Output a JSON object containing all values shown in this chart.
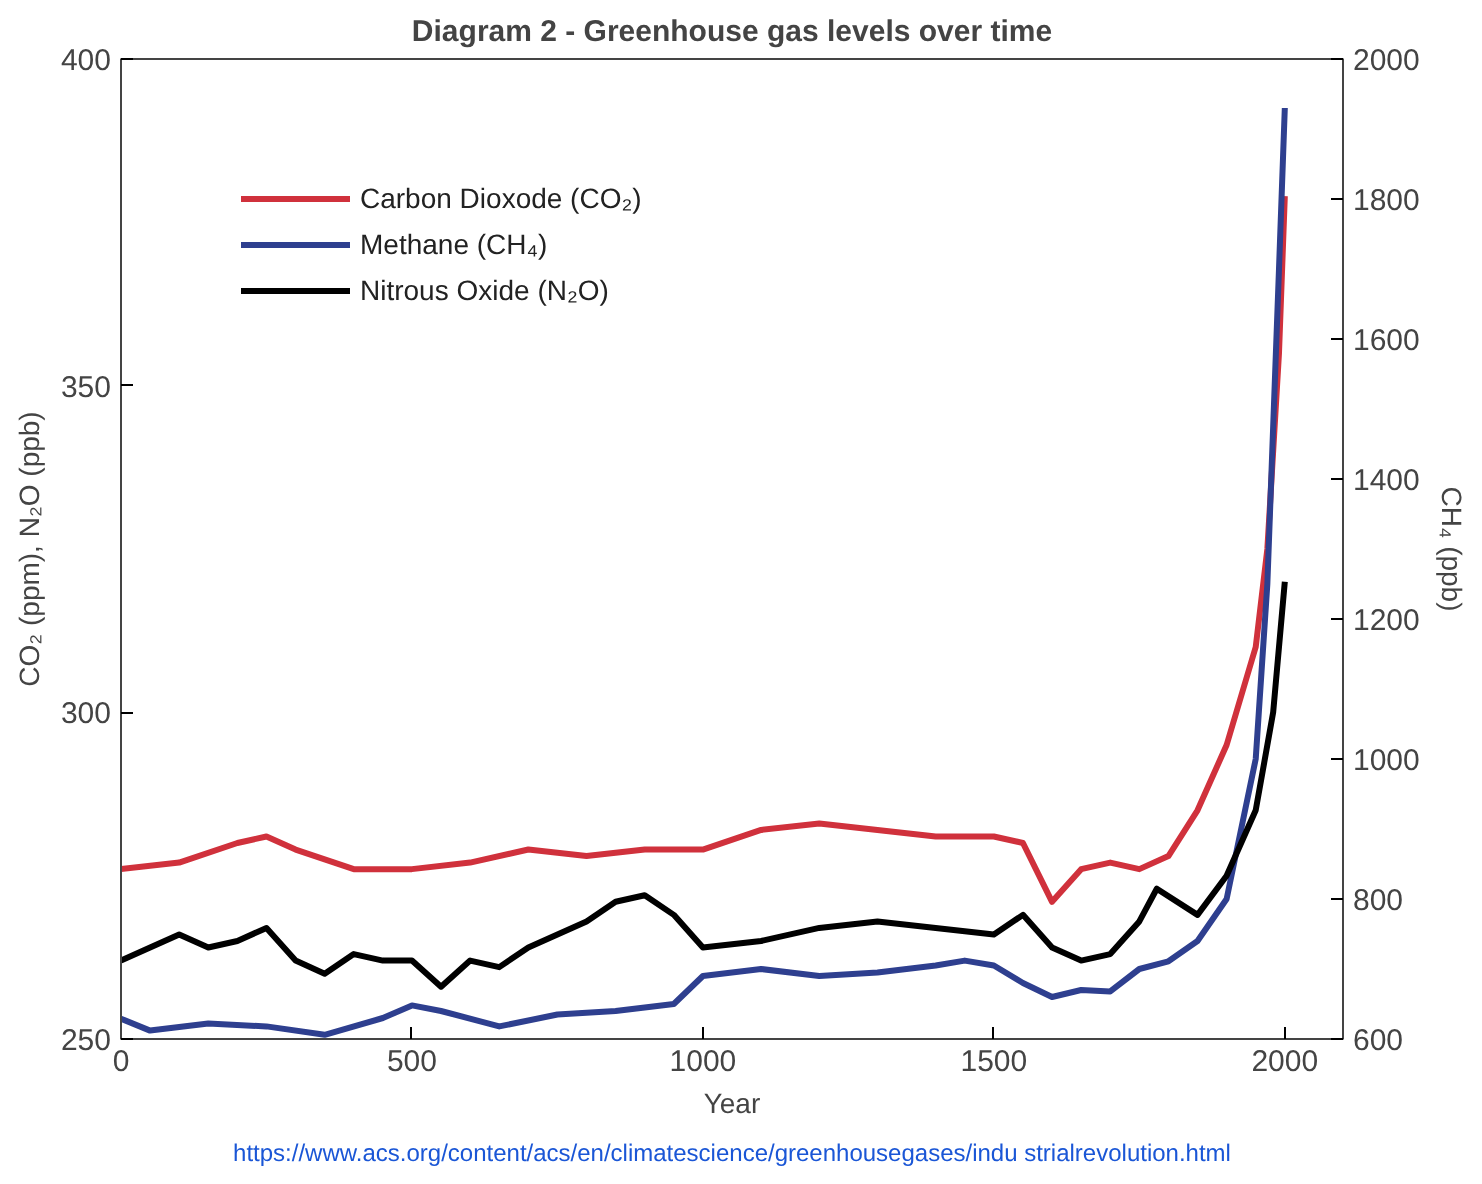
{
  "chart_data": {
    "type": "line",
    "title": "Diagram 2 - Greenhouse gas levels over time",
    "xlabel": "Year",
    "ylabel": "CO₂ (ppm), N₂O (ppb)",
    "y2label": "CH₄ (ppb)",
    "xlim": [
      0,
      2100
    ],
    "xticks": [
      0,
      500,
      1000,
      1500,
      2000
    ],
    "ylim": [
      250,
      400
    ],
    "yticks": [
      250,
      300,
      350,
      400
    ],
    "y2lim": [
      600,
      2000
    ],
    "y2ticks": [
      600,
      800,
      1000,
      1200,
      1400,
      1600,
      1800,
      2000
    ],
    "grid": false,
    "legend": "top left",
    "marker": "none",
    "line_style": "solid",
    "annotations": [
      "https://www.acs.org/content/acs/en/climatescience/greenhousegases/indu strialrevolution.html"
    ],
    "series": [
      {
        "name": "Carbon Dioxode (CO₂)",
        "color": "#d0313c",
        "x": [
          0,
          100,
          200,
          250,
          300,
          400,
          500,
          600,
          700,
          800,
          900,
          1000,
          1100,
          1200,
          1300,
          1400,
          1500,
          1550,
          1600,
          1650,
          1700,
          1750,
          1800,
          1850,
          1900,
          1950,
          1970,
          1990,
          2000
        ],
        "values": [
          276,
          277,
          280,
          281,
          279,
          276,
          276,
          277,
          279,
          278,
          279,
          279,
          282,
          283,
          282,
          281,
          281,
          280,
          271,
          276,
          277,
          276,
          278,
          285,
          295,
          310,
          325,
          355,
          379
        ]
      },
      {
        "name": "Methane (CH₄)",
        "color": "#2e3f8f",
        "axis": "y2",
        "x": [
          0,
          50,
          150,
          250,
          350,
          450,
          500,
          550,
          650,
          750,
          850,
          950,
          1000,
          1100,
          1200,
          1300,
          1400,
          1450,
          1500,
          1550,
          1600,
          1650,
          1700,
          1750,
          1800,
          1850,
          1900,
          1950,
          1970,
          1990,
          2000
        ],
        "values": [
          629,
          612,
          622,
          618,
          606,
          630,
          648,
          640,
          618,
          635,
          640,
          650,
          690,
          700,
          690,
          695,
          705,
          712,
          705,
          680,
          660,
          670,
          668,
          700,
          711,
          740,
          800,
          1000,
          1250,
          1700,
          1930
        ]
      },
      {
        "name": "Nitrous Oxide (N₂O)",
        "color": "#000000",
        "x": [
          0,
          50,
          100,
          150,
          200,
          250,
          300,
          350,
          400,
          450,
          500,
          550,
          600,
          650,
          700,
          800,
          850,
          900,
          950,
          1000,
          1100,
          1200,
          1300,
          1400,
          1500,
          1550,
          1600,
          1650,
          1700,
          1750,
          1780,
          1850,
          1900,
          1950,
          1980,
          2000
        ],
        "values": [
          262,
          264,
          266,
          264,
          265,
          267,
          262,
          260,
          263,
          262,
          262,
          258,
          262,
          261,
          264,
          268,
          271,
          272,
          269,
          264,
          265,
          267,
          268,
          267,
          266,
          269,
          264,
          262,
          263,
          268,
          273,
          269,
          275,
          285,
          300,
          320
        ]
      }
    ]
  }
}
